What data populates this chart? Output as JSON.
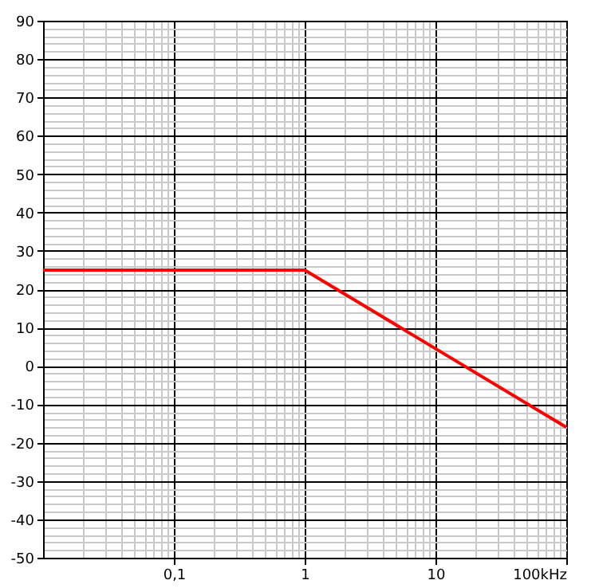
{
  "chart_data": {
    "type": "line",
    "x": [
      0.01,
      1,
      100
    ],
    "series": [
      {
        "color": "#ff0000",
        "values": [
          25,
          25,
          -16
        ]
      }
    ],
    "log": "x",
    "xlim": [
      0.01,
      100
    ],
    "xticks": [
      {
        "value": 0.1,
        "label": "0,1"
      },
      1,
      10,
      {
        "value": 100,
        "label": "100kHz"
      }
    ],
    "ylim": [
      -50,
      90
    ],
    "yticks": [
      -50,
      -40,
      -30,
      -20,
      -10,
      0,
      10,
      20,
      30,
      40,
      50,
      60,
      70,
      80,
      90
    ],
    "grid": true,
    "marker": "none",
    "line_style": "solid"
  }
}
